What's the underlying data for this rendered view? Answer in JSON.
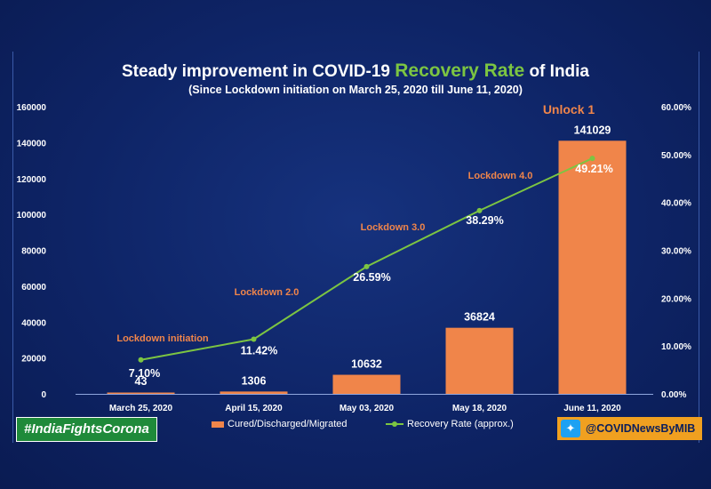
{
  "header": {
    "title_pre": "Steady improvement in COVID-19 ",
    "title_highlight": "Recovery Rate",
    "title_post": " of India",
    "subtitle": "(Since Lockdown initiation on March 25, 2020 till June 11, 2020)"
  },
  "footer": {
    "hashtag": "#IndiaFightsCorona",
    "handle": "@COVIDNewsByMIB",
    "twitter_icon": "twitter-bird-icon"
  },
  "colors": {
    "background": "#0e2466",
    "bar": "#f0854a",
    "line": "#7cc542",
    "phase": "#f0854a",
    "text": "#ffffff"
  },
  "chart_data": {
    "type": "bar+line",
    "title": "Steady improvement in COVID-19 Recovery Rate of India",
    "categories": [
      "March 25, 2020",
      "April 15, 2020",
      "May 03, 2020",
      "May 18, 2020",
      "June 11, 2020"
    ],
    "series": [
      {
        "name": "Cured/Discharged/Migrated",
        "type": "bar",
        "axis": "left",
        "values": [
          43,
          1306,
          10632,
          36824,
          141029
        ],
        "labels": [
          "43",
          "1306",
          "10632",
          "36824",
          "141029"
        ]
      },
      {
        "name": "Recovery Rate (approx.)",
        "type": "line",
        "axis": "right",
        "values": [
          7.1,
          11.42,
          26.59,
          38.29,
          49.21
        ],
        "labels": [
          "7.10%",
          "11.42%",
          "26.59%",
          "38.29%",
          "49.21%"
        ]
      }
    ],
    "phase_labels": [
      "Lockdown initiation",
      "Lockdown 2.0",
      "Lockdown 3.0",
      "Lockdown 4.0",
      "Unlock 1"
    ],
    "y_left": {
      "range": [
        0,
        160000
      ],
      "ticks": [
        0,
        20000,
        40000,
        60000,
        80000,
        100000,
        120000,
        140000,
        160000
      ],
      "tick_labels": [
        "0",
        "20000",
        "40000",
        "60000",
        "80000",
        "100000",
        "120000",
        "140000",
        "160000"
      ]
    },
    "y_right": {
      "range": [
        0,
        60
      ],
      "ticks": [
        0,
        10,
        20,
        30,
        40,
        50,
        60
      ],
      "tick_labels": [
        "0.00%",
        "10.00%",
        "20.00%",
        "30.00%",
        "40.00%",
        "50.00%",
        "60.00%"
      ]
    },
    "legend": [
      "Cured/Discharged/Migrated",
      "Recovery Rate (approx.)"
    ],
    "grid": false
  }
}
